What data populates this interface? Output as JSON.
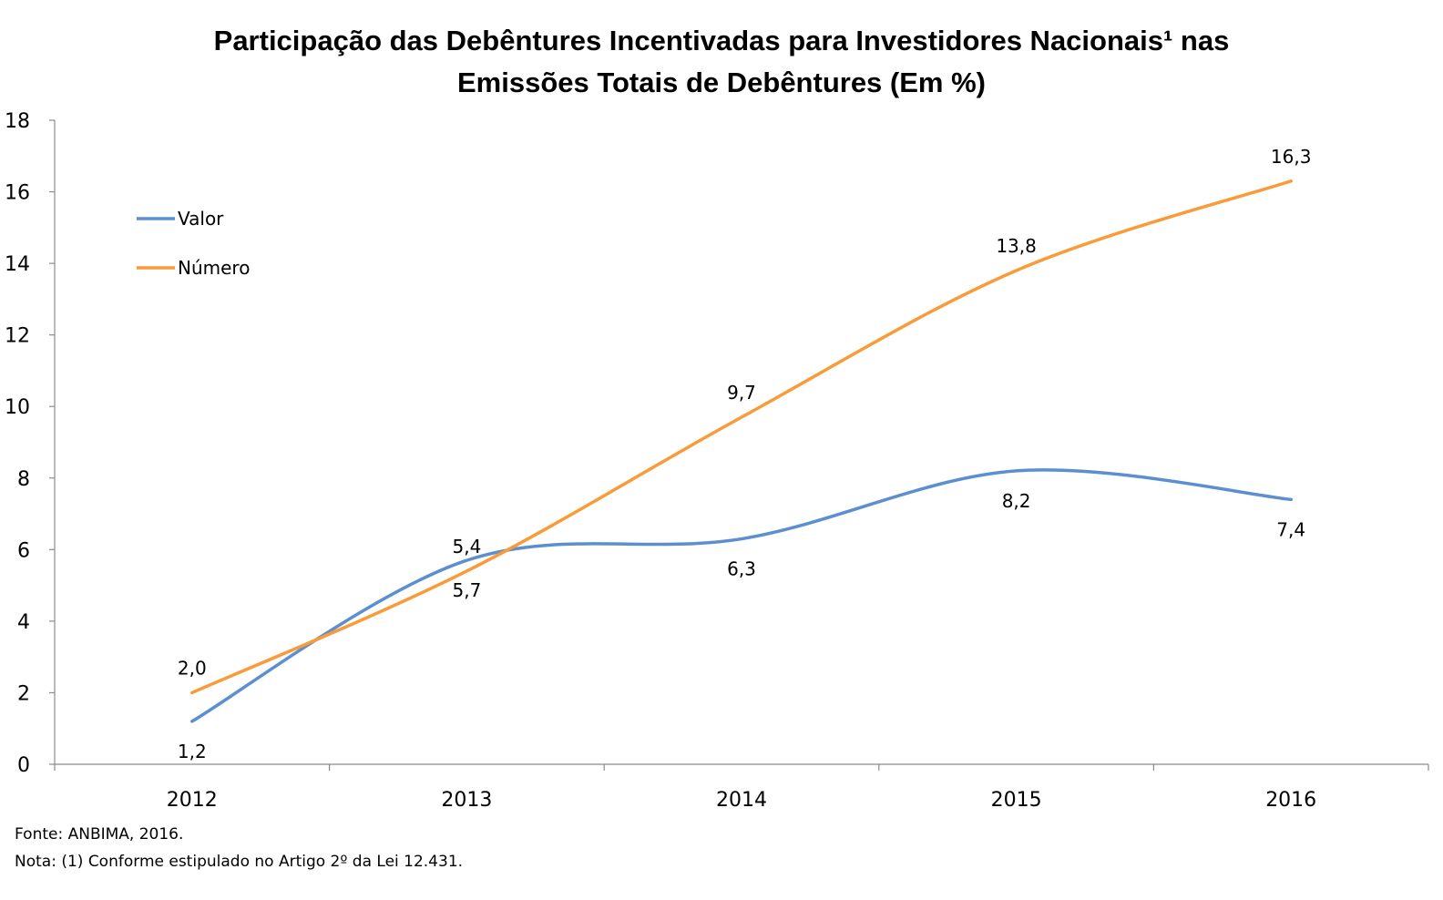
{
  "chart_data": {
    "type": "line",
    "title_line1": "Participação das Debêntures Incentivadas para Investidores Nacionais¹ nas",
    "title_line2": "Emissões Totais de Debêntures (Em %)",
    "categories": [
      "2012",
      "2013",
      "2014",
      "2015",
      "2016"
    ],
    "ylim": [
      0,
      18
    ],
    "yticks": [
      "0",
      "2",
      "4",
      "6",
      "8",
      "10",
      "12",
      "14",
      "16",
      "18"
    ],
    "grid": false,
    "legend_position": "top-left",
    "smooth": true,
    "series": [
      {
        "name": "Valor",
        "color": "#5b8fd0",
        "values": [
          1.2,
          5.7,
          6.3,
          8.2,
          7.4
        ],
        "labels": [
          "1,2",
          "5,7",
          "6,3",
          "8,2",
          "7,4"
        ],
        "label_placement": "below"
      },
      {
        "name": "Número",
        "color": "#f99b38",
        "values": [
          2.0,
          5.4,
          9.7,
          13.8,
          16.3
        ],
        "labels": [
          "2,0",
          "5,4",
          "9,7",
          "13,8",
          "16,3"
        ],
        "label_placement": "above"
      }
    ]
  },
  "footer": {
    "source": "Fonte: ANBIMA, 2016.",
    "note": "Nota: (1) Conforme estipulado no Artigo 2º da Lei 12.431."
  }
}
